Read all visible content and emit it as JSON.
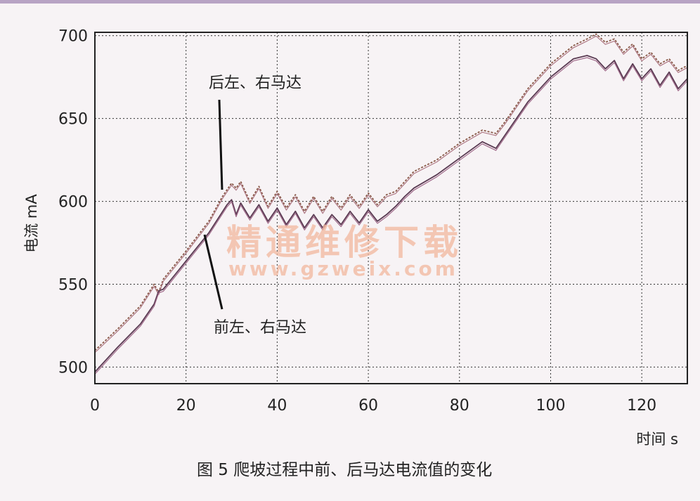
{
  "chart_data": {
    "type": "line",
    "title": "",
    "xlabel": "时间  s",
    "ylabel": "电流  mA",
    "xlim": [
      0,
      130
    ],
    "ylim": [
      490,
      702
    ],
    "xticks": [
      0,
      20,
      40,
      60,
      80,
      100,
      120
    ],
    "yticks": [
      500,
      550,
      600,
      650,
      700
    ],
    "grid": true,
    "series": [
      {
        "name": "后左、右马达",
        "color": "#8a5a4a",
        "x": [
          0,
          5,
          10,
          13,
          14,
          15,
          20,
          25,
          28,
          30,
          31,
          32,
          34,
          36,
          38,
          40,
          42,
          44,
          46,
          48,
          50,
          52,
          54,
          56,
          58,
          60,
          62,
          64,
          66,
          68,
          70,
          75,
          80,
          85,
          88,
          90,
          95,
          100,
          105,
          108,
          110,
          112,
          114,
          116,
          118,
          120,
          122,
          124,
          126,
          128,
          130
        ],
        "y": [
          510,
          523,
          537,
          550,
          545,
          553,
          570,
          588,
          603,
          611,
          608,
          612,
          600,
          609,
          597,
          606,
          596,
          604,
          594,
          603,
          594,
          603,
          596,
          604,
          597,
          605,
          598,
          604,
          606,
          612,
          618,
          625,
          635,
          643,
          641,
          648,
          668,
          683,
          694,
          698,
          701,
          696,
          698,
          690,
          695,
          686,
          690,
          683,
          686,
          679,
          682
        ]
      },
      {
        "name": "前左、右马达",
        "color": "#5a3a52",
        "x": [
          0,
          5,
          10,
          13,
          14,
          15,
          20,
          25,
          29,
          30,
          31,
          32,
          34,
          36,
          38,
          40,
          42,
          44,
          46,
          48,
          50,
          52,
          54,
          56,
          58,
          60,
          62,
          64,
          66,
          68,
          70,
          75,
          80,
          85,
          88,
          90,
          95,
          100,
          105,
          108,
          110,
          112,
          114,
          116,
          118,
          120,
          122,
          124,
          126,
          128,
          130
        ],
        "y": [
          497,
          512,
          526,
          538,
          546,
          547,
          564,
          581,
          598,
          601,
          592,
          599,
          590,
          598,
          588,
          596,
          586,
          594,
          584,
          592,
          584,
          592,
          586,
          594,
          587,
          595,
          588,
          592,
          597,
          603,
          608,
          616,
          626,
          636,
          632,
          640,
          660,
          675,
          686,
          688,
          686,
          680,
          685,
          674,
          683,
          674,
          680,
          670,
          678,
          668,
          674
        ]
      }
    ],
    "annotations": [
      {
        "text": "后左、右马达"
      },
      {
        "text": "前左、右马达"
      }
    ]
  },
  "caption": "图 5   爬坡过程中前、后马达电流值的变化",
  "watermark": {
    "line1": "精通维修下载",
    "line2": "www.gzweix.com"
  }
}
